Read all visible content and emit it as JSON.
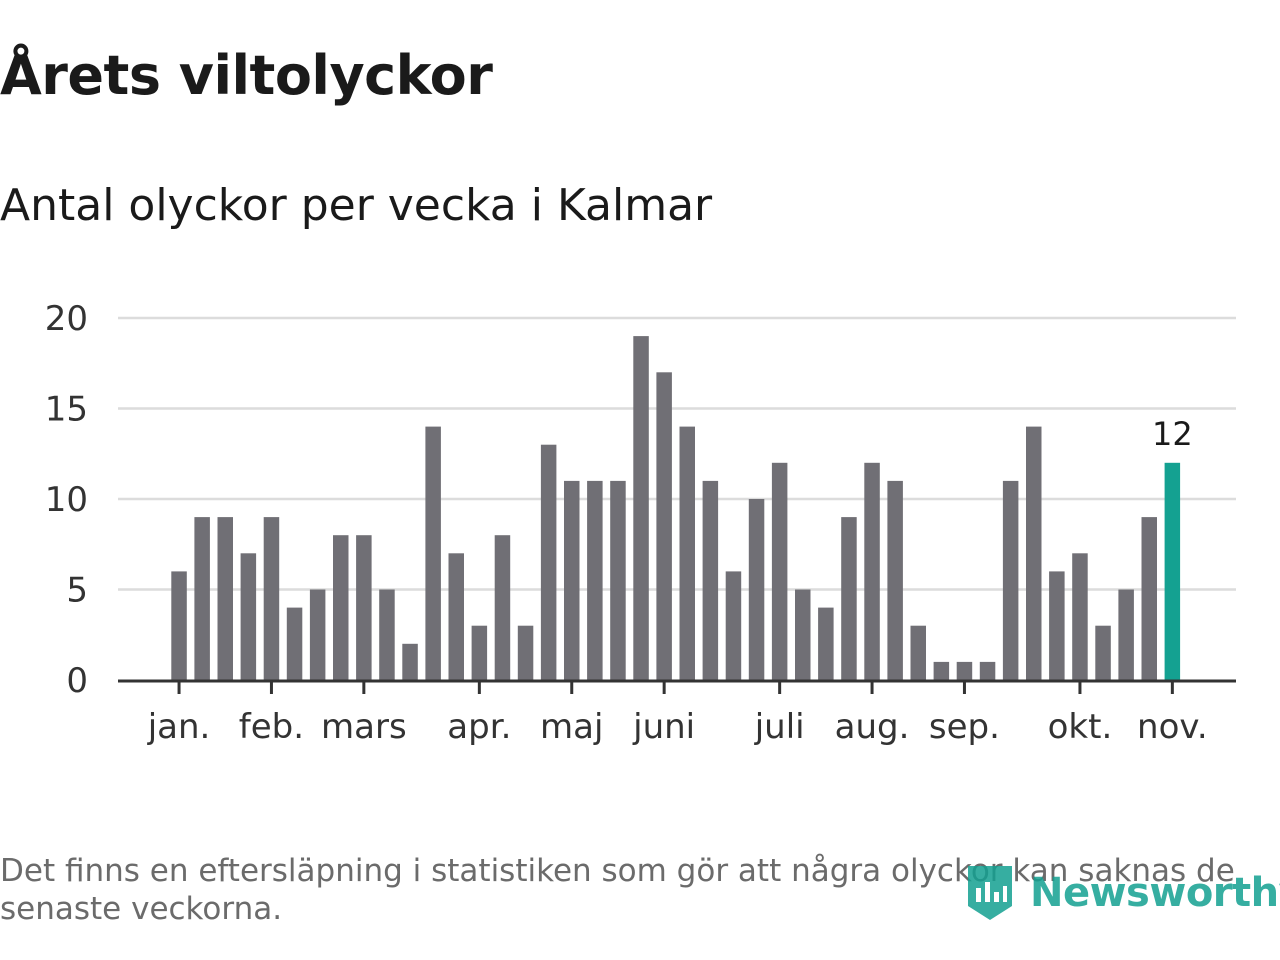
{
  "header": {
    "title": "Årets viltolyckor",
    "subtitle": "Antal olyckor per vecka i Kalmar"
  },
  "footnote": "Det finns en eftersläpning i statistiken som gör att några olyckor kan saknas de senaste veckorna.",
  "logo": {
    "text": "Newsworthy"
  },
  "colors": {
    "bar": "#706f75",
    "highlight": "#14a191",
    "grid": "#dcdcdc",
    "axis": "#333333",
    "text": "#333333"
  },
  "chart_data": {
    "type": "bar",
    "title": "Årets viltolyckor",
    "subtitle": "Antal olyckor per vecka i Kalmar",
    "xlabel": "",
    "ylabel": "",
    "ylim": [
      0,
      20
    ],
    "yticks": [
      0,
      5,
      10,
      15,
      20
    ],
    "grid": true,
    "values": [
      6,
      9,
      9,
      7,
      9,
      4,
      5,
      8,
      8,
      5,
      2,
      14,
      7,
      3,
      8,
      3,
      13,
      11,
      11,
      11,
      19,
      17,
      14,
      11,
      6,
      10,
      12,
      5,
      4,
      9,
      12,
      11,
      3,
      1,
      1,
      1,
      11,
      14,
      6,
      7,
      3,
      5,
      9,
      12
    ],
    "highlight_index": 43,
    "highlight_label": "12",
    "month_labels": [
      {
        "label": "jan.",
        "at": 0.5
      },
      {
        "label": "feb.",
        "at": 4.5
      },
      {
        "label": "mars",
        "at": 8.5
      },
      {
        "label": "apr.",
        "at": 13.5
      },
      {
        "label": "maj",
        "at": 17.5
      },
      {
        "label": "juni",
        "at": 21.5
      },
      {
        "label": "juli",
        "at": 26.5
      },
      {
        "label": "aug.",
        "at": 30.5
      },
      {
        "label": "sep.",
        "at": 34.5
      },
      {
        "label": "okt.",
        "at": 39.5
      },
      {
        "label": "nov.",
        "at": 43.5
      }
    ]
  }
}
